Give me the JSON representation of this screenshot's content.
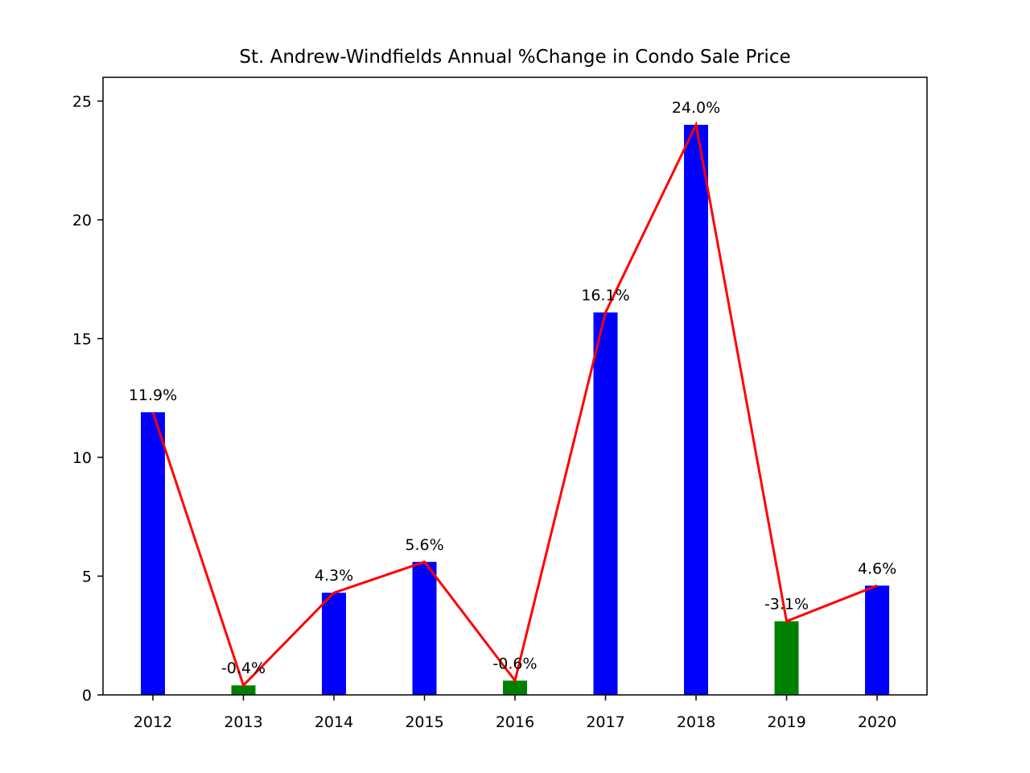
{
  "chart_data": {
    "type": "bar",
    "title": "St. Andrew-Windfields Annual %Change in Condo Sale Price",
    "xlabel": "",
    "ylabel": "",
    "categories": [
      "2012",
      "2013",
      "2014",
      "2015",
      "2016",
      "2017",
      "2018",
      "2019",
      "2020"
    ],
    "values": [
      11.9,
      0.4,
      4.3,
      5.6,
      0.6,
      16.1,
      24.0,
      3.1,
      4.6
    ],
    "data_labels": [
      "11.9%",
      "-0.4%",
      "4.3%",
      "5.6%",
      "-0.6%",
      "16.1%",
      "24.0%",
      "-3.1%",
      "4.6%"
    ],
    "bar_colors": [
      "#0000ff",
      "#008000",
      "#0000ff",
      "#0000ff",
      "#008000",
      "#0000ff",
      "#0000ff",
      "#008000",
      "#0000ff"
    ],
    "line_color": "#ff0000",
    "ylim": [
      0,
      26
    ],
    "yticks": [
      0,
      5,
      10,
      15,
      20,
      25
    ],
    "grid": false,
    "overlay": "line connecting bar tops"
  }
}
